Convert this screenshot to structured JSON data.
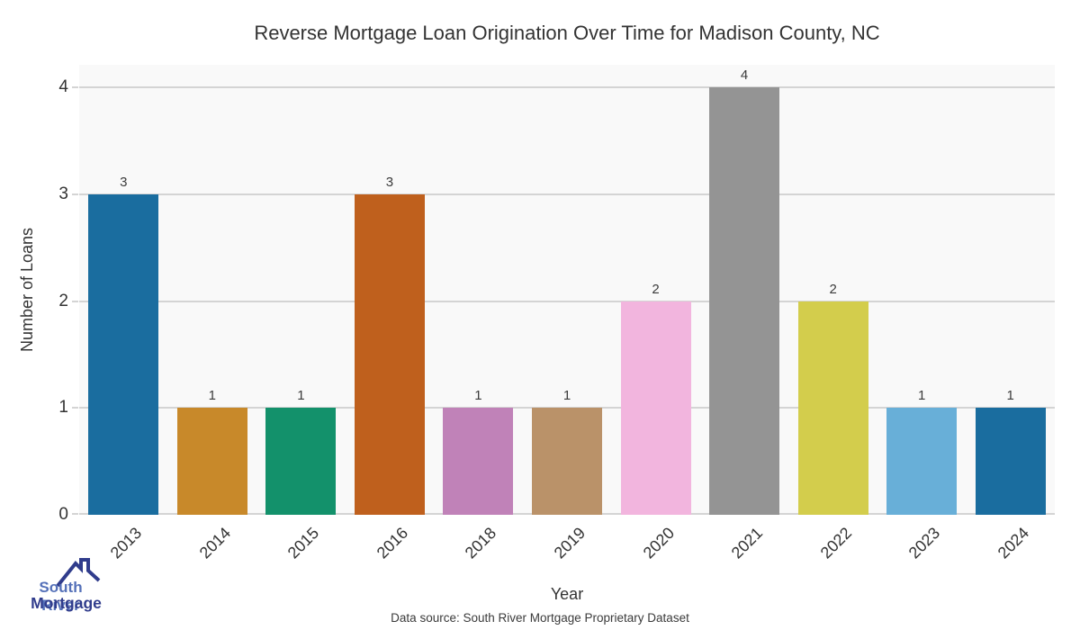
{
  "chart_data": {
    "type": "bar",
    "title": "Reverse Mortgage Loan Origination Over Time for Madison County, NC",
    "categories": [
      "2013",
      "2014",
      "2015",
      "2016",
      "2018",
      "2019",
      "2020",
      "2021",
      "2022",
      "2023",
      "2024"
    ],
    "values": [
      3,
      1,
      1,
      3,
      1,
      1,
      2,
      4,
      2,
      1,
      1
    ],
    "bar_colors": [
      "#1a6d9f",
      "#c8892a",
      "#13916b",
      "#bf601d",
      "#c082b8",
      "#ba9269",
      "#f2b5de",
      "#949494",
      "#d3cd4c",
      "#68afd8",
      "#1a6d9f"
    ],
    "xlabel": "Year",
    "ylabel": "Number of Loans",
    "ylim": [
      0,
      4
    ],
    "yticks": [
      0,
      1,
      2,
      3,
      4
    ],
    "grid": true,
    "legend": "none"
  },
  "colors": {
    "panel_bg": "#f9f9f9",
    "gridline": "#d4d4d4",
    "text": "#333333",
    "logo_blue": "#5571b9",
    "logo_navy": "#303c8c"
  },
  "footer": {
    "source_text": "Data source: South River Mortgage Proprietary Dataset"
  },
  "logo": {
    "line1": "South River",
    "line2": "Mortgage"
  }
}
